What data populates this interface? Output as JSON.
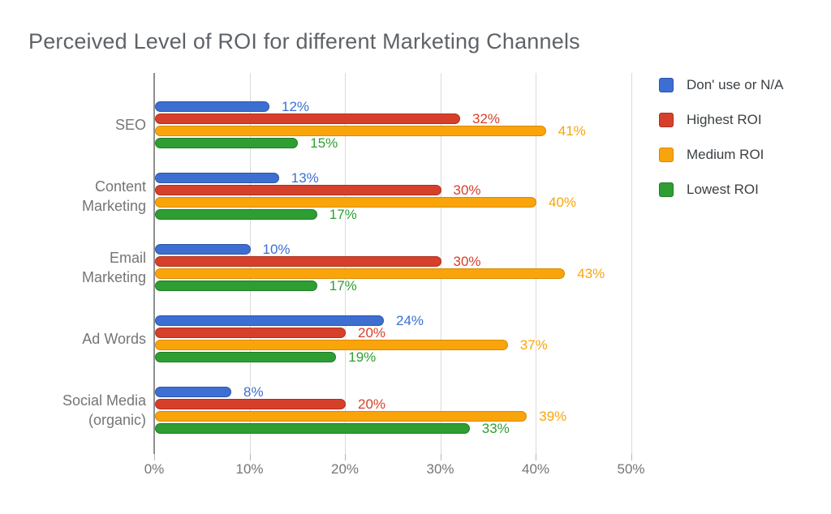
{
  "chart_data": {
    "type": "bar",
    "orientation": "horizontal",
    "title": "Perceived Level of ROI for different Marketing Channels",
    "categories": [
      {
        "lines": [
          "SEO"
        ]
      },
      {
        "lines": [
          "Content",
          "Marketing"
        ]
      },
      {
        "lines": [
          "Email",
          "Marketing"
        ]
      },
      {
        "lines": [
          "Ad Words"
        ]
      },
      {
        "lines": [
          "Social Media",
          "(organic)"
        ]
      }
    ],
    "series": [
      {
        "name": "Don' use or N/A",
        "color": "#3c6fd1",
        "border_color": "#2d55a6",
        "values": [
          12,
          13,
          10,
          24,
          8
        ]
      },
      {
        "name": "Highest ROI",
        "color": "#d6402a",
        "border_color": "#aa311f",
        "values": [
          32,
          30,
          30,
          20,
          20
        ]
      },
      {
        "name": "Medium ROI",
        "color": "#f9a40a",
        "border_color": "#d68a00",
        "values": [
          41,
          40,
          43,
          37,
          39
        ]
      },
      {
        "name": "Lowest ROI",
        "color": "#2e9e32",
        "border_color": "#1f7b25",
        "values": [
          15,
          17,
          17,
          19,
          33
        ]
      }
    ],
    "value_suffix": "%",
    "x_ticks": [
      {
        "label": "0%",
        "value": 0
      },
      {
        "label": "10%",
        "value": 10
      },
      {
        "label": "20%",
        "value": 20
      },
      {
        "label": "30%",
        "value": 30
      },
      {
        "label": "40%",
        "value": 40
      },
      {
        "label": "50%",
        "value": 50
      }
    ],
    "xlim": [
      0,
      50
    ],
    "grid": true,
    "legend_position": "right",
    "colors_meta": {
      "title_text": "#5f6368",
      "axis_text": "#757575",
      "gridline": "#dadada",
      "axis_line": "#8f8f8f",
      "legend_text": "#3c4043"
    }
  }
}
